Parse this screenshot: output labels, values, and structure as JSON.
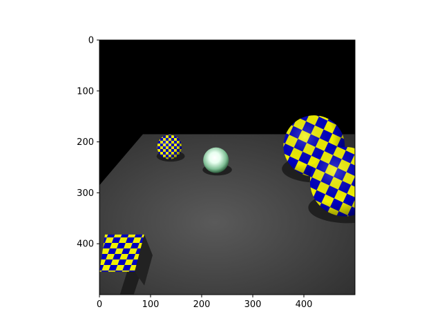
{
  "chart_data": {
    "type": "image",
    "title": "",
    "xlabel": "",
    "ylabel": "",
    "xlim": [
      0,
      500
    ],
    "ylim": [
      500,
      0
    ],
    "xticks": [
      0,
      100,
      200,
      300,
      400
    ],
    "yticks": [
      0,
      100,
      200,
      300,
      400
    ],
    "grid": false,
    "legend": "none",
    "image_content": {
      "background_color": "#000000",
      "floor_color": "#4a4a4a",
      "checker_colors": [
        "#f0f000",
        "#0000c0"
      ],
      "glossy_sphere_color": "#e8fff0",
      "objects": [
        {
          "kind": "checkered-sphere",
          "center": [
            137,
            210
          ],
          "radius": 24
        },
        {
          "kind": "glossy-sphere",
          "center": [
            228,
            236
          ],
          "radius": 25
        },
        {
          "kind": "checkered-sphere",
          "center": [
            420,
            208
          ],
          "radius": 60
        },
        {
          "kind": "checkered-sphere",
          "center": [
            480,
            278
          ],
          "radius": 68
        },
        {
          "kind": "checkered-box",
          "corner": [
            0,
            382
          ],
          "size": [
            77,
            73
          ]
        }
      ]
    }
  }
}
